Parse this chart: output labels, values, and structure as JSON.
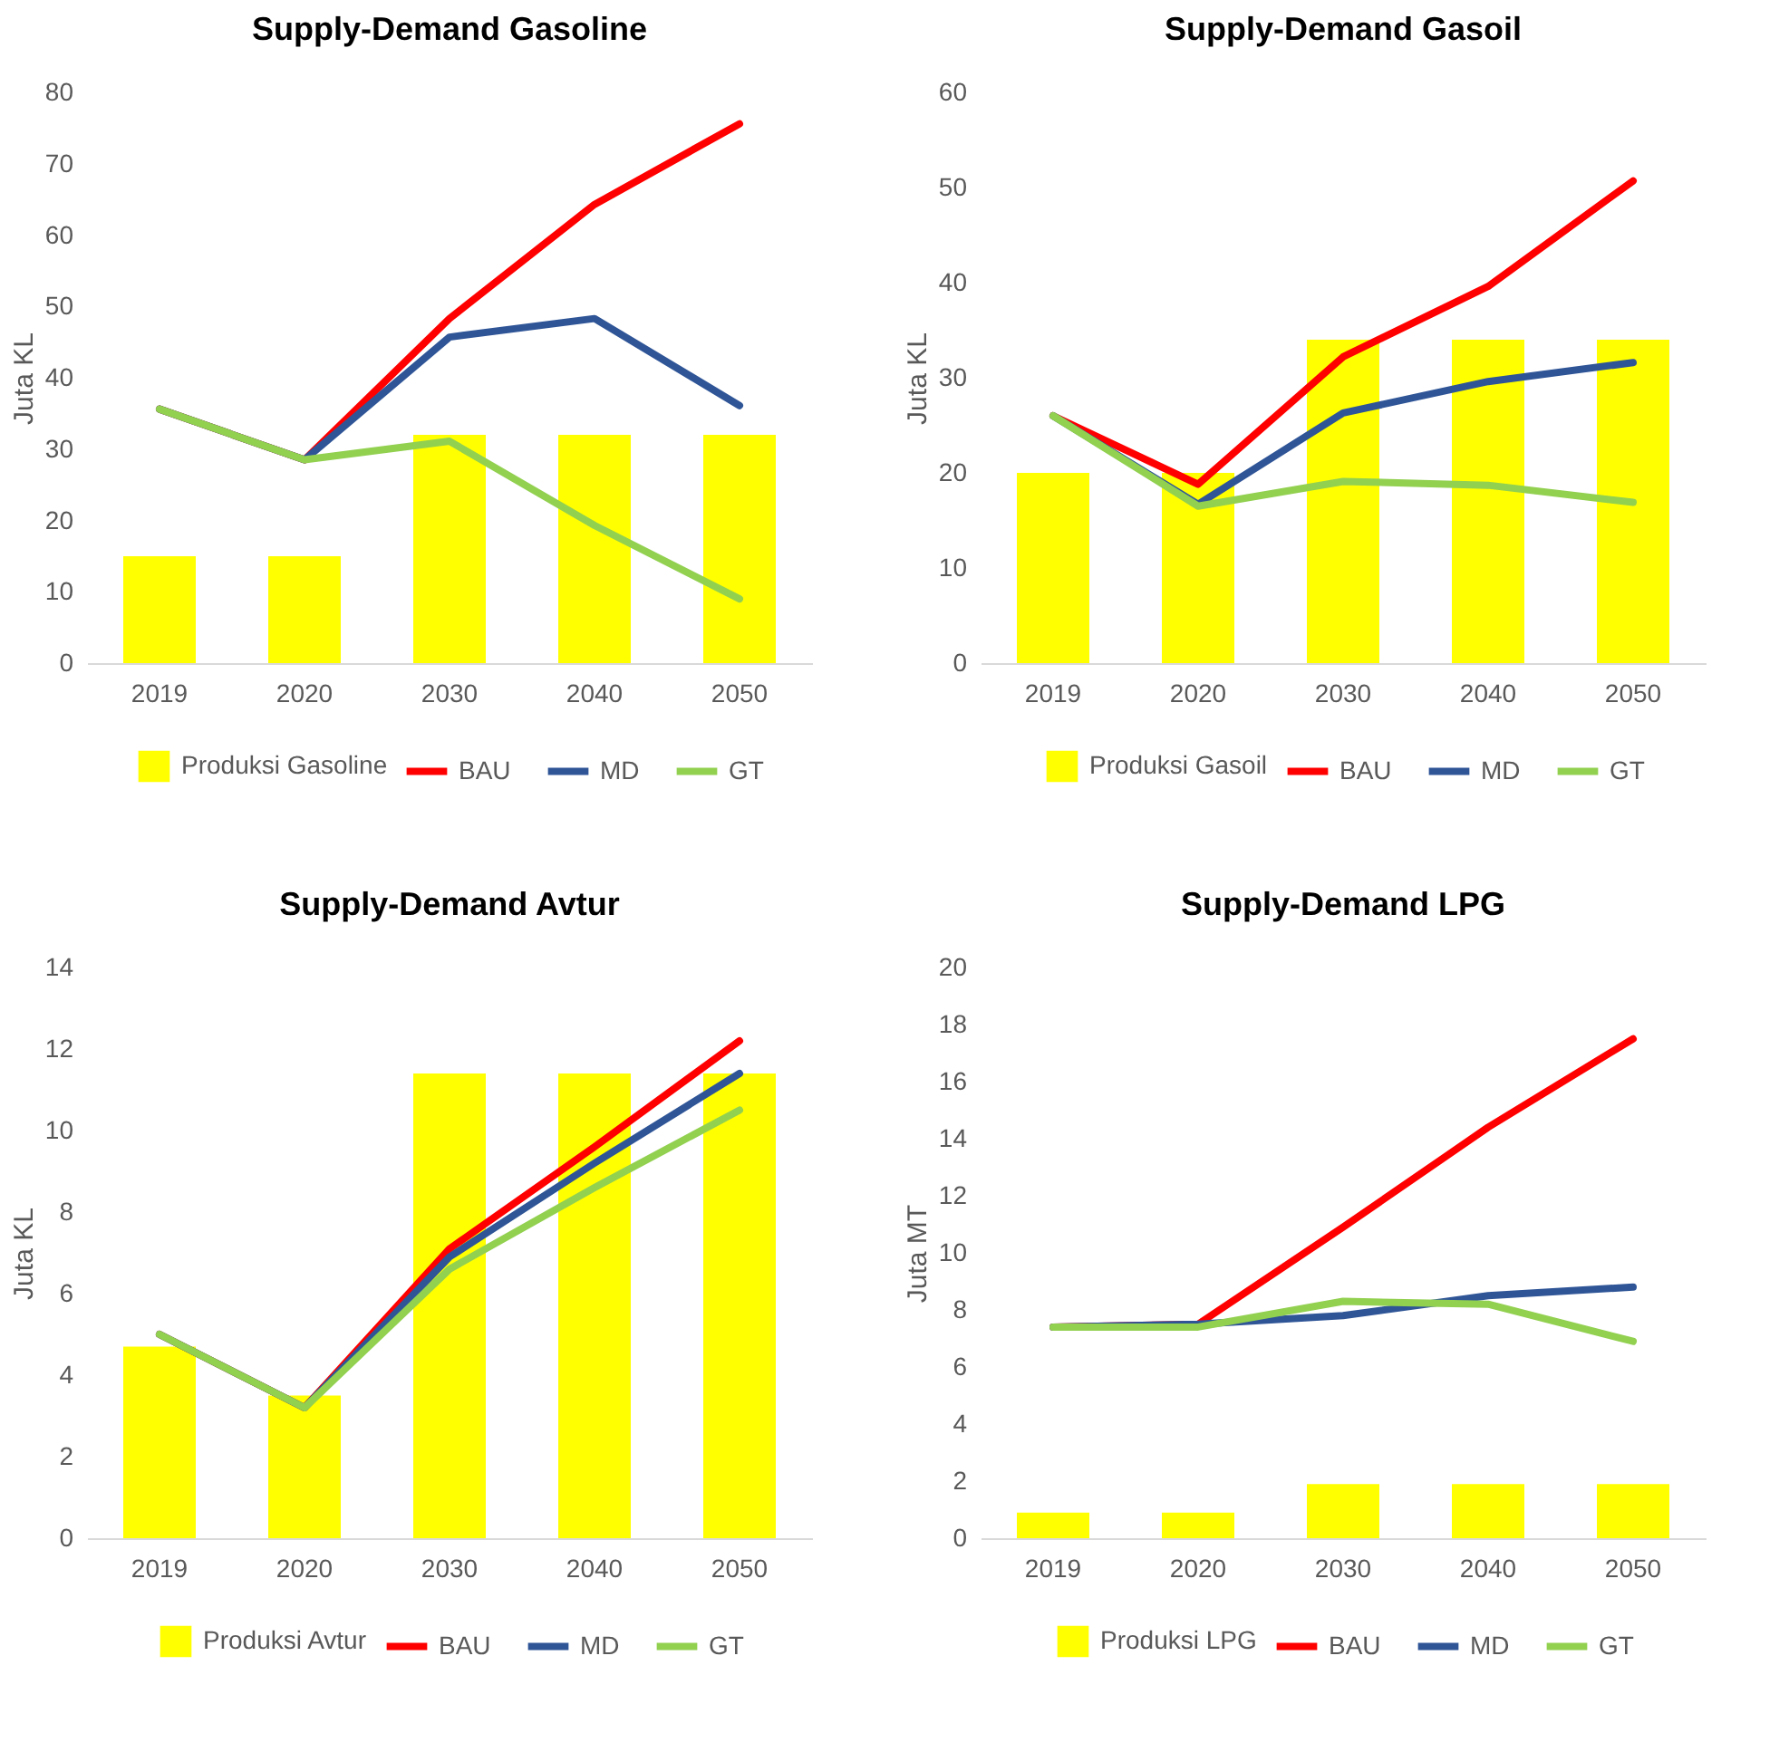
{
  "chart_data": [
    {
      "type": "line",
      "title": "Supply-Demand Gasoline",
      "ylabel": "Juta KL",
      "categories": [
        "2019",
        "2020",
        "2030",
        "2040",
        "2050"
      ],
      "ylim": [
        0,
        80
      ],
      "yticks": [
        0,
        10,
        20,
        30,
        40,
        50,
        60,
        70,
        80
      ],
      "grid": false,
      "legend": "bottom",
      "series": [
        {
          "name": "Produksi Gasoline",
          "type": "bar",
          "color": "#ffff00",
          "values": [
            15,
            15,
            32,
            32,
            32
          ]
        },
        {
          "name": "BAU",
          "color": "#ff0000",
          "values": [
            35.6,
            28.5,
            48.3,
            64.3,
            75.6
          ]
        },
        {
          "name": "MD",
          "color": "#2f5597",
          "values": [
            35.6,
            28.5,
            45.7,
            48.3,
            36.1
          ]
        },
        {
          "name": "GT",
          "color": "#92d050",
          "values": [
            35.6,
            28.5,
            31.1,
            19.3,
            9
          ]
        }
      ]
    },
    {
      "type": "line",
      "title": "Supply-Demand Gasoil",
      "ylabel": "Juta KL",
      "categories": [
        "2019",
        "2020",
        "2030",
        "2040",
        "2050"
      ],
      "ylim": [
        0,
        60
      ],
      "yticks": [
        0,
        10,
        20,
        30,
        40,
        50,
        60
      ],
      "grid": false,
      "legend": "bottom",
      "series": [
        {
          "name": "Produksi Gasoil",
          "type": "bar",
          "color": "#ffff00",
          "values": [
            20,
            20,
            34,
            34,
            34
          ]
        },
        {
          "name": "BAU",
          "color": "#ff0000",
          "values": [
            26,
            18.8,
            32.2,
            39.6,
            50.7
          ]
        },
        {
          "name": "MD",
          "color": "#2f5597",
          "values": [
            26,
            16.7,
            26.3,
            29.6,
            31.6
          ]
        },
        {
          "name": "GT",
          "color": "#92d050",
          "values": [
            26,
            16.5,
            19.1,
            18.7,
            16.9
          ]
        }
      ]
    },
    {
      "type": "line",
      "title": "Supply-Demand Avtur",
      "ylabel": "Juta KL",
      "categories": [
        "2019",
        "2020",
        "2030",
        "2040",
        "2050"
      ],
      "ylim": [
        0,
        14
      ],
      "yticks": [
        0,
        2,
        4,
        6,
        8,
        10,
        12,
        14
      ],
      "grid": false,
      "legend": "bottom",
      "series": [
        {
          "name": "Produksi Avtur",
          "type": "bar",
          "color": "#ffff00",
          "values": [
            4.7,
            3.5,
            11.4,
            11.4,
            11.4
          ]
        },
        {
          "name": "BAU",
          "color": "#ff0000",
          "values": [
            5.0,
            3.2,
            7.1,
            9.6,
            12.2
          ]
        },
        {
          "name": "MD",
          "color": "#2f5597",
          "values": [
            5.0,
            3.2,
            6.9,
            9.2,
            11.4
          ]
        },
        {
          "name": "GT",
          "color": "#92d050",
          "values": [
            5.0,
            3.2,
            6.6,
            8.6,
            10.5
          ]
        }
      ]
    },
    {
      "type": "line",
      "title": "Supply-Demand LPG",
      "ylabel": "Juta MT",
      "categories": [
        "2019",
        "2020",
        "2030",
        "2040",
        "2050"
      ],
      "ylim": [
        0,
        20
      ],
      "yticks": [
        0,
        2,
        4,
        6,
        8,
        10,
        12,
        14,
        16,
        18,
        20
      ],
      "grid": false,
      "legend": "bottom",
      "series": [
        {
          "name": "Produksi LPG",
          "type": "bar",
          "color": "#ffff00",
          "values": [
            0.9,
            0.9,
            1.9,
            1.9,
            1.9
          ]
        },
        {
          "name": "BAU",
          "color": "#ff0000",
          "values": [
            7.4,
            7.5,
            10.9,
            14.4,
            17.5
          ]
        },
        {
          "name": "MD",
          "color": "#2f5597",
          "values": [
            7.4,
            7.5,
            7.8,
            8.5,
            8.8
          ]
        },
        {
          "name": "GT",
          "color": "#92d050",
          "values": [
            7.4,
            7.4,
            8.3,
            8.2,
            6.9
          ]
        }
      ]
    }
  ]
}
